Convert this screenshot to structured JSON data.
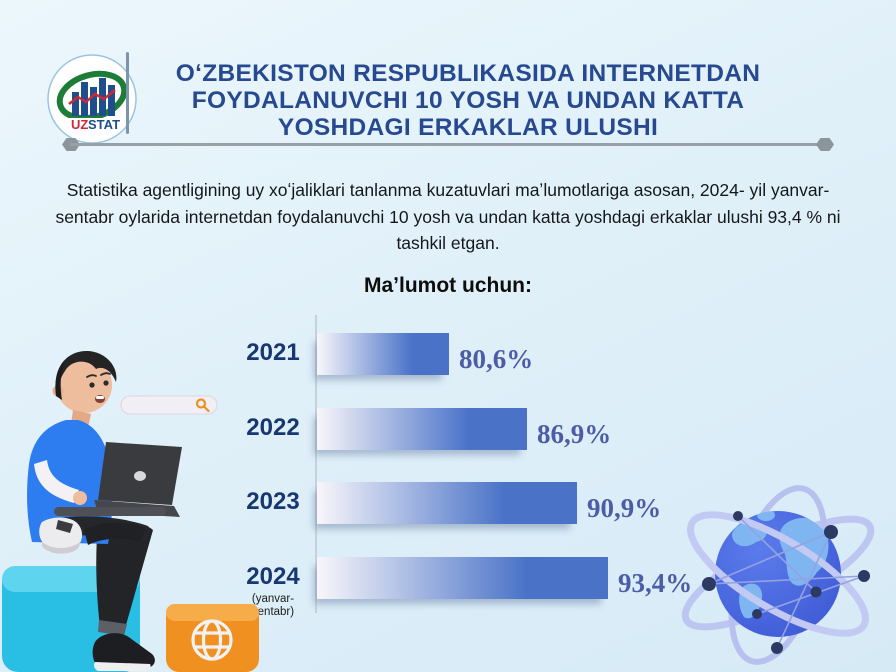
{
  "header": {
    "logo": {
      "uz": "UZ",
      "stat": "STAT"
    },
    "title": "OʻZBEKISTON RESPUBLIKASIDA INTERNETDAN FOYDALANUVCHI 10 YOSH VA UNDAN KATTA YOSHDAGI ERKAKLAR ULUSHI",
    "title_lines": [
      "OʻZBEKISTON RESPUBLIKASIDA INTERNETDAN",
      "FOYDALANUVCHI 10 YOSH VA UNDAN KATTA",
      "YOSHDAGI ERKAKLAR ULUSHI"
    ]
  },
  "intro_text": "Statistika agentligining uy xoʻjaliklari tanlanma kuzatuvlari maʼlumotlariga asosan, 2024- yil yanvar-sentabr oylarida internetdan foydalanuvchi 10 yosh va undan katta yoshdagi erkaklar ulushi 93,4 % ni tashkil etgan.",
  "chart_data": {
    "type": "bar",
    "orientation": "horizontal",
    "title": "Maʼlumot uchun:",
    "categories": [
      "2021",
      "2022",
      "2023",
      "2024"
    ],
    "category_notes": [
      "",
      "",
      "",
      "(yanvar-sentabr)"
    ],
    "values": [
      80.6,
      86.9,
      90.9,
      93.4
    ],
    "value_labels": [
      "80,6%",
      "86,9%",
      "90,9%",
      "93,4%"
    ],
    "xlim": [
      70,
      95
    ],
    "grid": false,
    "legend": false,
    "bar_gradient": [
      "#f8f6fa",
      "#4a73c8"
    ],
    "value_label_color": "#4c5da6",
    "category_label_color": "#16376f"
  },
  "colors": {
    "background": "#e0f0f9",
    "title_blue": "#27498f",
    "accent_bar_blue": "#4472c4",
    "rule_gray": "#999fa6",
    "cyan_cube": "#2ec4e8",
    "orange_cube": "#f09021",
    "globe_blue": "#4667e0"
  }
}
